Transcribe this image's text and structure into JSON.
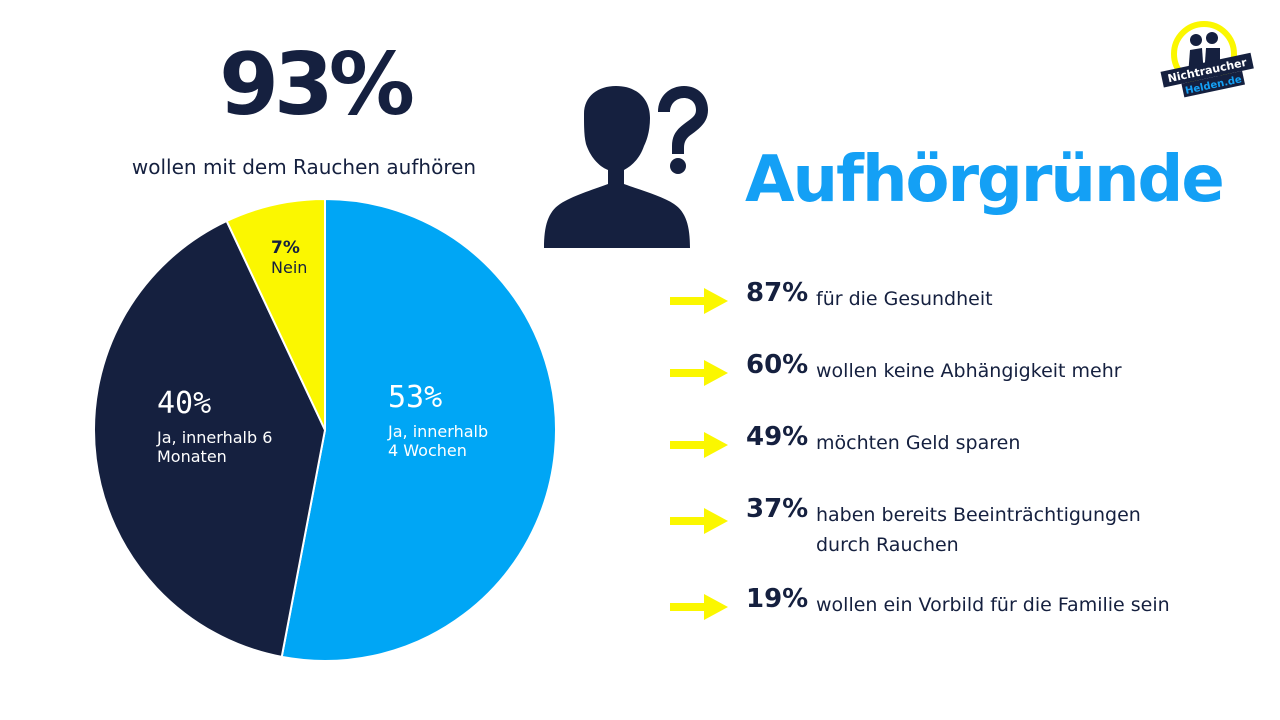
{
  "headline": {
    "value": "93%",
    "subtitle": "wollen mit dem Rauchen aufhören"
  },
  "chart_data": {
    "type": "pie",
    "slices": [
      {
        "label": "53%",
        "description": "Ja, innerhalb 4 Wochen",
        "value": 53,
        "color": "#00a6f5"
      },
      {
        "label": "40%",
        "description": "Ja, innerhalb 6 Monaten",
        "value": 40,
        "color": "#15203f"
      },
      {
        "label": "7%",
        "description": "Nein",
        "value": 7,
        "color": "#fbf700"
      }
    ]
  },
  "slice_labels": {
    "yes4_pct": "53%",
    "yes4_line1": "Ja, innerhalb",
    "yes4_line2": "4 Wochen",
    "yes6_pct": "40%",
    "yes6_line1": "Ja, innerhalb 6",
    "yes6_line2": "Monaten",
    "no_pct": "7%",
    "no_line1": "Nein"
  },
  "heading": "Aufhörgründe",
  "reasons": [
    {
      "pct": "87%",
      "text": "für die Gesundheit"
    },
    {
      "pct": "60%",
      "text": "wollen keine Abhängigkeit mehr"
    },
    {
      "pct": "49%",
      "text": "möchten Geld sparen"
    },
    {
      "pct": "37%",
      "text": "haben bereits Beeinträchtigungen",
      "text2": "durch Rauchen"
    },
    {
      "pct": "19%",
      "text": "wollen ein Vorbild für die Familie sein"
    }
  ],
  "logo": {
    "line1": "Nichtraucher",
    "line2": "Helden.de"
  },
  "icons": {
    "person": "person-question-icon",
    "arrow": "arrow-right-icon"
  },
  "colors": {
    "navy": "#15203f",
    "blue": "#00a6f5",
    "yellow": "#fbf700",
    "heading": "#14a0f5"
  }
}
